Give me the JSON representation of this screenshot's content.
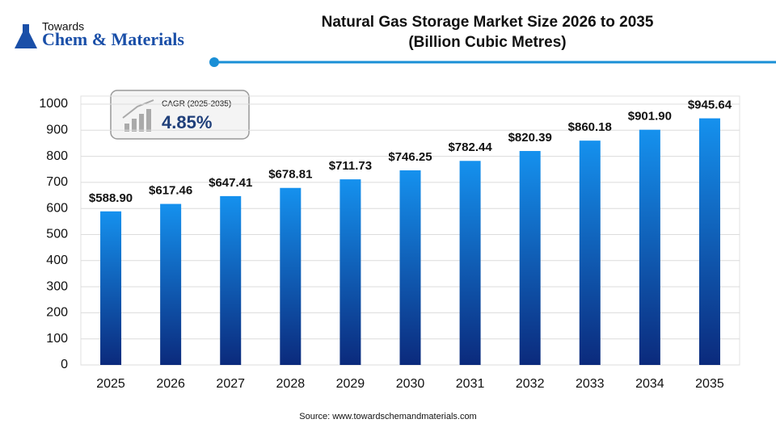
{
  "logo": {
    "line1": "Towards",
    "line2": "Chem & Materials"
  },
  "cagr": {
    "label": "CAGR (2025-2035)",
    "value": "4.85%"
  },
  "source": "Source: www.towardschemandmaterials.com",
  "chart_data": {
    "type": "bar",
    "title": "Natural Gas Storage Market Size 2026 to 2035",
    "subtitle": "(Billion Cubic Metres)",
    "categories": [
      "2025",
      "2026",
      "2027",
      "2028",
      "2029",
      "2030",
      "2031",
      "2032",
      "2033",
      "2034",
      "2035"
    ],
    "values": [
      588.9,
      617.46,
      647.41,
      678.81,
      711.73,
      746.25,
      782.44,
      820.39,
      860.18,
      901.9,
      945.64
    ],
    "value_labels": [
      "$588.90",
      "$617.46",
      "$647.41",
      "$678.81",
      "$711.73",
      "$746.25",
      "$782.44",
      "$820.39",
      "$860.18",
      "$901.90",
      "$945.64"
    ],
    "color": "#1591ee",
    "color_bottom": "#0b2a7c",
    "ylim": [
      0,
      1000
    ],
    "yticks": [
      0,
      100,
      200,
      300,
      400,
      500,
      600,
      700,
      800,
      900,
      1000
    ],
    "grid": true
  }
}
